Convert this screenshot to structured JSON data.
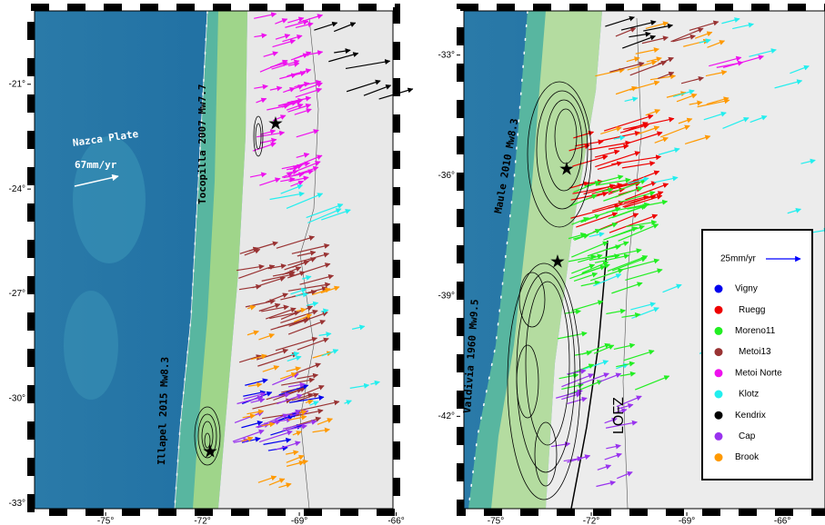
{
  "left_map": {
    "xlim": [
      -77.2,
      -66.1
    ],
    "ylim": [
      -33.15,
      -18.9
    ],
    "xticks": [
      {
        "value": -75,
        "label": "-75°"
      },
      {
        "value": -72,
        "label": "-72°"
      },
      {
        "value": -69,
        "label": "-69°"
      },
      {
        "value": -66,
        "label": "-66°"
      }
    ],
    "yticks": [
      {
        "value": -21,
        "label": "-21°"
      },
      {
        "value": -24,
        "label": "-24°"
      },
      {
        "value": -27,
        "label": "-27°"
      },
      {
        "value": -30,
        "label": "-30°"
      },
      {
        "value": -33,
        "label": "-33°"
      }
    ],
    "annotations": {
      "plate": "Nazca Plate",
      "rate": "67mm/yr",
      "tocopilla": "Tocopilla 2007 Mw7.7",
      "illapel": "Illapel 2015 Mw8.3"
    }
  },
  "right_map": {
    "xlim": [
      -76,
      -64.66
    ],
    "ylim": [
      -44.3,
      -31.9
    ],
    "xticks": [
      {
        "value": -75,
        "label": "-75°"
      },
      {
        "value": -72,
        "label": "-72°"
      },
      {
        "value": -69,
        "label": "-69°"
      },
      {
        "value": -66,
        "label": "-66°"
      }
    ],
    "yticks": [
      {
        "value": -33,
        "label": "-33°"
      },
      {
        "value": -36,
        "label": "-36°"
      },
      {
        "value": -39,
        "label": "-39°"
      },
      {
        "value": -42,
        "label": "-42°"
      }
    ],
    "annotations": {
      "maule": "Maule 2010 Mw8.3",
      "valdivia": "Valdivia 1960 Mw9.5",
      "fault": "LOFZ"
    }
  },
  "legend": {
    "scale": "25mm/yr",
    "scale_color": "#0000ff",
    "series": [
      {
        "name": "Vigny",
        "color": "#0000ee"
      },
      {
        "name": "Ruegg",
        "color": "#ee0000"
      },
      {
        "name": "Moreno11",
        "color": "#22ee22"
      },
      {
        "name": "Metoi13",
        "color": "#993333"
      },
      {
        "name": "Metoi Norte",
        "color": "#ee11ee"
      },
      {
        "name": "Klotz",
        "color": "#22eeee"
      },
      {
        "name": "Kendrix",
        "color": "#000000"
      },
      {
        "name": "Cap",
        "color": "#9933ee"
      },
      {
        "name": "Brook",
        "color": "#ff9900"
      }
    ]
  }
}
